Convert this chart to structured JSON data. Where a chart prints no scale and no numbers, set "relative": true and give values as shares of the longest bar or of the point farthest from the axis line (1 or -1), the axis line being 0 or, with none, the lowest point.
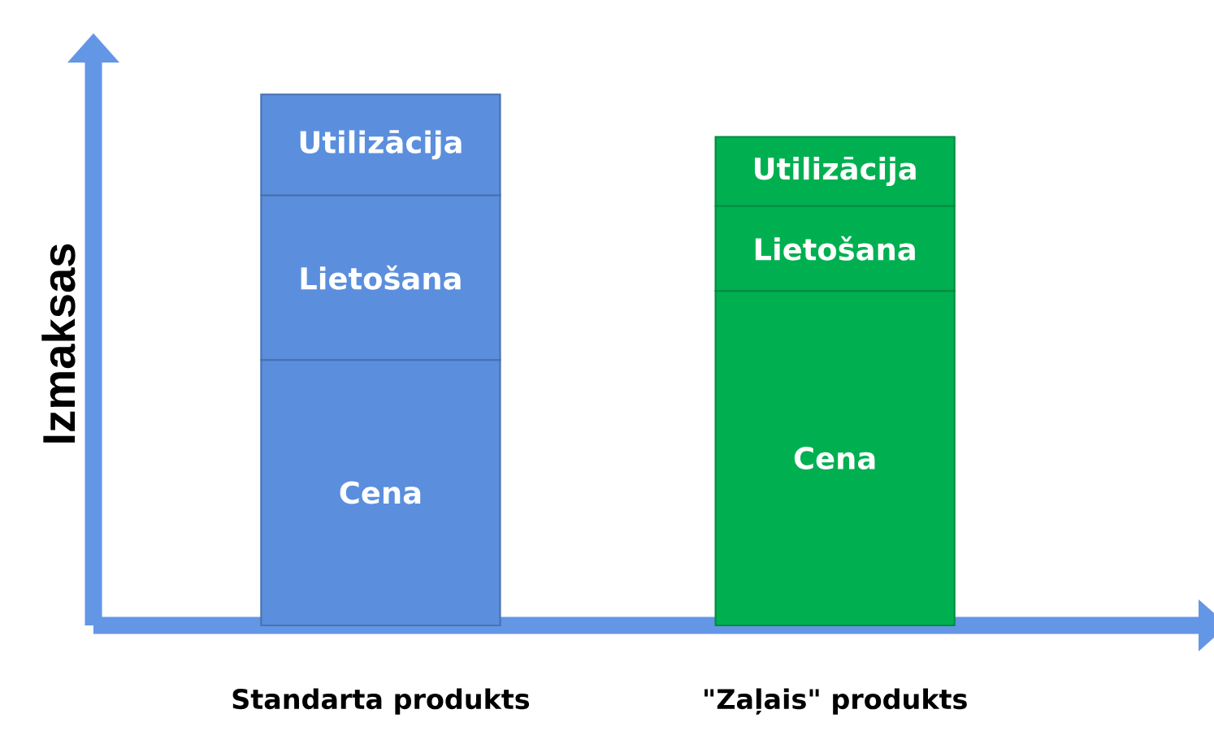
{
  "chart_data": {
    "type": "bar",
    "stacked": true,
    "relative": true,
    "ylabel": "Izmaksas",
    "categories": [
      "Standarta produkts",
      "\"Zaļais\" produkts"
    ],
    "series": [
      {
        "name": "Cena",
        "colors": [
          "#5b8fdd",
          "#00b050"
        ],
        "values": [
          0.5,
          0.63
        ]
      },
      {
        "name": "Lietošana",
        "colors": [
          "#5b8fdd",
          "#00b050"
        ],
        "values": [
          0.31,
          0.16
        ]
      },
      {
        "name": "Utilizācija",
        "colors": [
          "#5b8fdd",
          "#00b050"
        ],
        "values": [
          0.19,
          0.13
        ]
      }
    ]
  }
}
